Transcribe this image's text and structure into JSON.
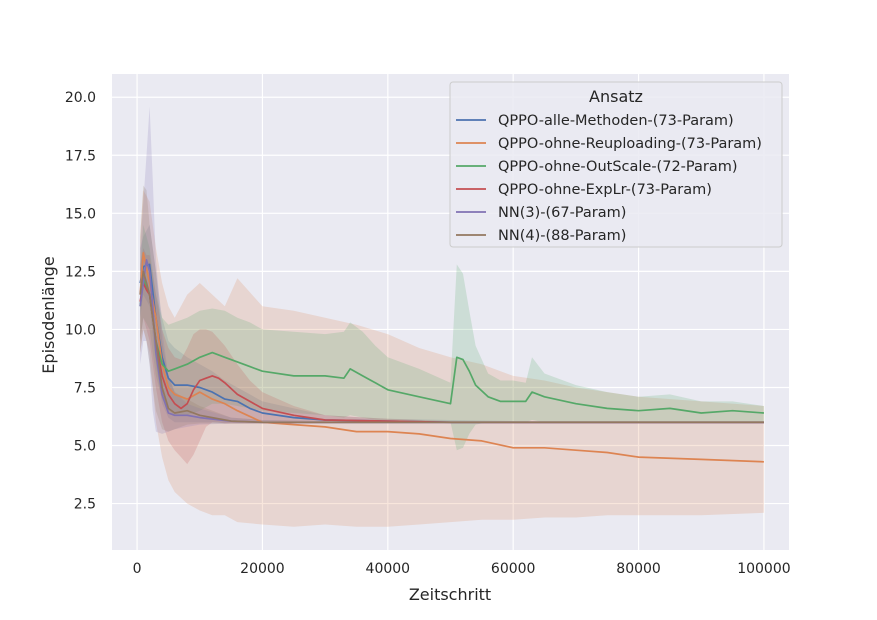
{
  "chart_data": {
    "type": "line",
    "xlabel": "Zeitschritt",
    "ylabel": "Episodenlänge",
    "xlim": [
      -4000,
      104000
    ],
    "ylim": [
      0.5,
      21.0
    ],
    "xticks": [
      0,
      20000,
      40000,
      60000,
      80000,
      100000
    ],
    "xtick_labels": [
      "0",
      "20000",
      "40000",
      "60000",
      "80000",
      "100000"
    ],
    "yticks": [
      2.5,
      5.0,
      7.5,
      10.0,
      12.5,
      15.0,
      17.5,
      20.0
    ],
    "ytick_labels": [
      "2.5",
      "5.0",
      "7.5",
      "10.0",
      "12.5",
      "15.0",
      "17.5",
      "20.0"
    ],
    "grid": true,
    "legend": {
      "title": "Ansatz",
      "placement": "top-right"
    },
    "series": [
      {
        "name": "QPPO-alle-Methoden-(73-Param)",
        "color": "#4c72b0",
        "x": [
          500,
          1000,
          2000,
          3000,
          4000,
          5000,
          6000,
          7000,
          8000,
          10000,
          12000,
          14000,
          16000,
          18000,
          20000,
          25000,
          30000,
          40000,
          50000,
          60000,
          70000,
          80000,
          90000,
          100000
        ],
        "y": [
          12.0,
          12.7,
          12.8,
          10.5,
          8.8,
          7.9,
          7.6,
          7.6,
          7.6,
          7.5,
          7.3,
          7.0,
          6.9,
          6.6,
          6.4,
          6.2,
          6.1,
          6.05,
          6.0,
          6.0,
          6.0,
          6.0,
          6.0,
          6.0
        ],
        "lower": [
          10.5,
          11.5,
          11.0,
          8.5,
          6.8,
          6.2,
          6.0,
          6.0,
          6.0,
          6.0,
          6.0,
          5.95,
          5.95,
          5.95,
          5.95,
          5.95,
          5.95,
          5.95,
          5.95,
          5.95,
          5.95,
          5.95,
          5.95,
          5.95
        ],
        "upper": [
          13.5,
          14.0,
          14.5,
          12.5,
          10.5,
          9.5,
          9.2,
          9.0,
          8.8,
          8.5,
          8.2,
          7.8,
          7.5,
          7.2,
          6.9,
          6.6,
          6.3,
          6.15,
          6.1,
          6.05,
          6.05,
          6.05,
          6.05,
          6.05
        ]
      },
      {
        "name": "QPPO-ohne-Reuploading-(73-Param)",
        "color": "#dd8452",
        "x": [
          500,
          1000,
          2000,
          3000,
          4000,
          5000,
          6000,
          8000,
          10000,
          12000,
          14000,
          16000,
          20000,
          25000,
          30000,
          35000,
          40000,
          45000,
          50000,
          55000,
          60000,
          65000,
          70000,
          75000,
          80000,
          90000,
          100000
        ],
        "y": [
          11.5,
          13.3,
          12.0,
          10.5,
          8.5,
          7.5,
          7.2,
          7.0,
          7.3,
          7.0,
          6.8,
          6.5,
          6.0,
          5.9,
          5.8,
          5.6,
          5.6,
          5.5,
          5.3,
          5.2,
          4.9,
          4.9,
          4.8,
          4.7,
          4.5,
          4.4,
          4.3
        ],
        "lower": [
          9.0,
          10.0,
          9.0,
          6.0,
          4.5,
          3.5,
          3.0,
          2.5,
          2.2,
          2.0,
          2.0,
          1.7,
          1.6,
          1.5,
          1.6,
          1.5,
          1.5,
          1.6,
          1.7,
          1.8,
          1.8,
          1.9,
          1.9,
          2.0,
          2.0,
          2.0,
          2.1
        ],
        "upper": [
          14.0,
          16.0,
          15.5,
          13.5,
          12.0,
          11.0,
          10.5,
          11.5,
          12.0,
          11.5,
          11.0,
          12.2,
          11.0,
          10.8,
          10.5,
          10.2,
          9.8,
          9.2,
          8.8,
          8.5,
          8.0,
          7.8,
          7.5,
          7.3,
          7.1,
          6.9,
          6.7
        ]
      },
      {
        "name": "QPPO-ohne-OutScale-(72-Param)",
        "color": "#55a868",
        "x": [
          500,
          1000,
          2000,
          3000,
          4000,
          5000,
          6000,
          8000,
          10000,
          12000,
          14000,
          16000,
          18000,
          20000,
          25000,
          30000,
          33000,
          34000,
          36000,
          38000,
          40000,
          45000,
          50000,
          51000,
          52000,
          53000,
          54000,
          56000,
          58000,
          60000,
          62000,
          63000,
          65000,
          70000,
          75000,
          80000,
          85000,
          90000,
          95000,
          100000
        ],
        "y": [
          11.0,
          12.2,
          11.5,
          9.5,
          8.5,
          8.2,
          8.3,
          8.5,
          8.8,
          9.0,
          8.8,
          8.6,
          8.4,
          8.2,
          8.0,
          8.0,
          7.9,
          8.3,
          8.0,
          7.7,
          7.4,
          7.1,
          6.8,
          8.8,
          8.7,
          8.2,
          7.6,
          7.1,
          6.9,
          6.9,
          6.9,
          7.3,
          7.1,
          6.8,
          6.6,
          6.5,
          6.6,
          6.4,
          6.5,
          6.4
        ],
        "lower": [
          9.5,
          10.5,
          10.0,
          8.0,
          7.0,
          6.5,
          6.3,
          6.3,
          6.5,
          6.8,
          6.8,
          6.7,
          6.6,
          6.5,
          6.4,
          6.3,
          6.2,
          6.3,
          6.2,
          6.1,
          6.1,
          6.0,
          6.0,
          4.8,
          4.9,
          5.5,
          5.9,
          6.0,
          6.0,
          6.0,
          6.0,
          6.1,
          6.0,
          6.0,
          6.0,
          6.0,
          6.0,
          6.0,
          6.0,
          6.0
        ],
        "upper": [
          12.5,
          14.5,
          13.5,
          11.5,
          10.5,
          10.2,
          10.3,
          10.5,
          10.8,
          10.9,
          10.8,
          10.5,
          10.3,
          10.0,
          9.9,
          9.8,
          9.9,
          10.3,
          9.9,
          9.3,
          8.8,
          8.3,
          7.7,
          12.8,
          12.4,
          10.8,
          9.3,
          8.1,
          7.8,
          7.8,
          7.7,
          8.8,
          8.1,
          7.6,
          7.3,
          7.1,
          7.2,
          6.9,
          6.9,
          6.7
        ]
      },
      {
        "name": "QPPO-ohne-ExpLr-(73-Param)",
        "color": "#c44e52",
        "x": [
          500,
          1000,
          1500,
          2000,
          3000,
          4000,
          5000,
          6000,
          7000,
          8000,
          9000,
          10000,
          11000,
          12000,
          13000,
          14000,
          16000,
          18000,
          20000,
          25000,
          30000,
          40000,
          50000,
          60000,
          70000,
          80000,
          90000,
          100000
        ],
        "y": [
          11.2,
          12.0,
          11.7,
          11.5,
          9.5,
          8.0,
          7.2,
          6.8,
          6.6,
          6.8,
          7.4,
          7.8,
          7.9,
          8.0,
          7.9,
          7.7,
          7.2,
          6.9,
          6.6,
          6.3,
          6.1,
          6.05,
          6.0,
          6.0,
          6.0,
          6.0,
          6.0,
          6.0
        ],
        "lower": [
          9.5,
          10.5,
          10.0,
          9.5,
          7.5,
          6.0,
          5.2,
          4.8,
          4.5,
          4.2,
          4.6,
          5.2,
          5.8,
          6.0,
          6.0,
          5.95,
          5.95,
          5.95,
          5.95,
          5.95,
          5.95,
          5.95,
          5.95,
          5.95,
          5.95,
          5.95,
          5.95,
          5.95
        ],
        "upper": [
          12.8,
          13.5,
          13.2,
          13.2,
          11.5,
          10.0,
          9.2,
          8.8,
          8.7,
          9.2,
          9.8,
          10.0,
          10.0,
          9.9,
          9.6,
          9.3,
          8.5,
          7.8,
          7.3,
          6.7,
          6.3,
          6.15,
          6.05,
          6.05,
          6.05,
          6.05,
          6.05,
          6.05
        ]
      },
      {
        "name": "NN(3)-(67-Param)",
        "color": "#8172b3",
        "x": [
          500,
          1000,
          1500,
          2000,
          2500,
          3000,
          4000,
          5000,
          6000,
          8000,
          10000,
          15000,
          20000,
          30000,
          40000,
          60000,
          80000,
          100000
        ],
        "y": [
          11.0,
          12.0,
          13.0,
          12.5,
          11.0,
          9.0,
          7.2,
          6.4,
          6.3,
          6.3,
          6.2,
          6.05,
          6.0,
          6.0,
          6.0,
          6.0,
          6.0,
          6.0
        ],
        "lower": [
          8.5,
          9.5,
          9.5,
          8.5,
          6.5,
          5.6,
          5.5,
          5.6,
          5.7,
          5.8,
          5.9,
          5.95,
          5.95,
          5.95,
          5.95,
          5.95,
          5.95,
          5.95
        ],
        "upper": [
          13.5,
          15.5,
          17.5,
          19.6,
          16.5,
          13.0,
          10.0,
          8.0,
          7.3,
          6.8,
          6.6,
          6.2,
          6.1,
          6.05,
          6.05,
          6.05,
          6.05,
          6.05
        ]
      },
      {
        "name": "NN(4)-(88-Param)",
        "color": "#937860",
        "x": [
          500,
          1000,
          1500,
          2000,
          3000,
          4000,
          5000,
          6000,
          8000,
          10000,
          15000,
          20000,
          30000,
          40000,
          60000,
          80000,
          100000
        ],
        "y": [
          11.5,
          12.5,
          12.0,
          11.5,
          9.5,
          7.5,
          6.6,
          6.4,
          6.5,
          6.3,
          6.05,
          6.0,
          6.0,
          6.0,
          6.0,
          6.0,
          6.0
        ],
        "lower": [
          9.0,
          10.0,
          9.5,
          8.5,
          6.5,
          5.7,
          5.6,
          5.7,
          5.9,
          5.95,
          5.95,
          5.95,
          5.95,
          5.95,
          5.95,
          5.95,
          5.95
        ],
        "upper": [
          14.0,
          16.2,
          16.0,
          14.5,
          12.5,
          9.5,
          8.0,
          7.3,
          7.0,
          6.7,
          6.2,
          6.1,
          6.05,
          6.05,
          6.05,
          6.05,
          6.05
        ]
      }
    ]
  }
}
